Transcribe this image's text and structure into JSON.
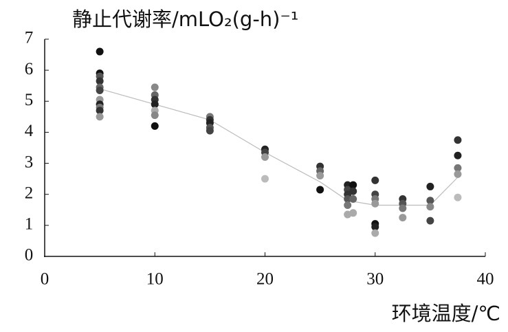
{
  "chart_data": {
    "type": "scatter",
    "title": "静止代谢率/mLO₂(g-h)⁻¹",
    "x_label": "环境温度/℃",
    "x": [
      5,
      5,
      5,
      5,
      5,
      5,
      5,
      5,
      5,
      5,
      5,
      10,
      10,
      10,
      10,
      10,
      10,
      10,
      15,
      15,
      15,
      15,
      15,
      20,
      20,
      20,
      20,
      25,
      25,
      25,
      25,
      27.5,
      27.5,
      27.5,
      27.5,
      27.5,
      27.5,
      28,
      28,
      28,
      28,
      30,
      30,
      30,
      30,
      30,
      30,
      30,
      32.5,
      32.5,
      32.5,
      32.5,
      35,
      35,
      35,
      35,
      37.5,
      37.5,
      37.5,
      37.5,
      37.5
    ],
    "y": [
      6.6,
      5.9,
      5.8,
      5.65,
      5.45,
      5.35,
      5.05,
      4.9,
      4.8,
      4.7,
      4.5,
      5.45,
      5.2,
      5.05,
      4.9,
      4.7,
      4.55,
      4.2,
      4.5,
      4.4,
      4.3,
      4.15,
      4.05,
      3.45,
      3.35,
      3.2,
      2.5,
      2.9,
      2.75,
      2.6,
      2.15,
      2.3,
      2.15,
      2.0,
      1.85,
      1.65,
      1.35,
      2.3,
      2.1,
      1.85,
      1.4,
      2.45,
      2.0,
      1.85,
      1.7,
      1.05,
      0.95,
      0.75,
      1.85,
      1.7,
      1.55,
      1.25,
      2.25,
      1.8,
      1.6,
      1.15,
      3.75,
      3.25,
      2.85,
      2.65,
      1.9
    ],
    "colors": [
      "#111",
      "#111",
      "#555",
      "#333",
      "#666",
      "#444",
      "#999",
      "#222",
      "#777",
      "#333",
      "#999",
      "#888",
      "#666",
      "#333",
      "#222",
      "#aaa",
      "#888",
      "#111",
      "#777",
      "#333",
      "#222",
      "#555",
      "#444",
      "#222",
      "#444",
      "#999",
      "#bbb",
      "#333",
      "#666",
      "#999",
      "#111",
      "#222",
      "#444",
      "#333",
      "#555",
      "#777",
      "#aaa",
      "#111",
      "#333",
      "#666",
      "#aaa",
      "#333",
      "#444",
      "#777",
      "#999",
      "#111",
      "#222",
      "#aaa",
      "#333",
      "#555",
      "#777",
      "#999",
      "#222",
      "#555",
      "#888",
      "#444",
      "#333",
      "#222",
      "#777",
      "#999",
      "#bbb"
    ],
    "mean": {
      "x": [
        5,
        10,
        15,
        20,
        25,
        27.5,
        30,
        32.5,
        35,
        37.5
      ],
      "y": [
        5.4,
        4.9,
        4.4,
        3.35,
        2.4,
        1.8,
        1.65,
        1.65,
        1.65,
        2.55
      ],
      "color": "#bbb"
    },
    "xlim": [
      0,
      40
    ],
    "xticks": [
      0,
      10,
      20,
      30,
      40
    ],
    "ylim": [
      0,
      7
    ],
    "yticks": [
      0,
      1,
      2,
      3,
      4,
      5,
      6,
      7
    ]
  }
}
